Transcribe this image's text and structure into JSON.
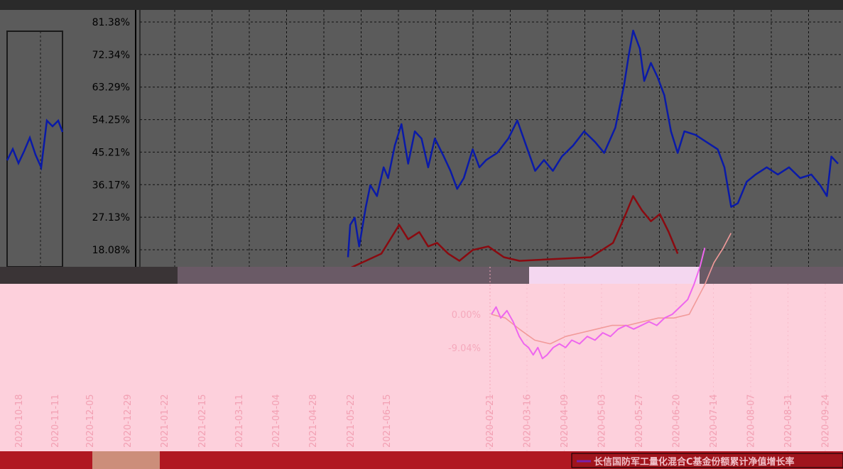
{
  "chart_data": [
    {
      "type": "line",
      "panel": "upper",
      "background": "#5b5b5b",
      "grid": true,
      "y_ticks": [
        "81.38%",
        "72.34%",
        "63.29%",
        "54.25%",
        "45.21%",
        "36.17%",
        "27.13%",
        "18.08%"
      ],
      "ylim": [
        14.0,
        81.38
      ],
      "series": [
        {
          "color": "#0a1aa8",
          "values": [
            {
              "x": "2021-05-19",
              "y": 16
            },
            {
              "x": "2021-05-20",
              "y": 25
            },
            {
              "x": "2021-05-22",
              "y": 27
            },
            {
              "x": "2021-05-24",
              "y": 19
            },
            {
              "x": "2021-05-27",
              "y": 30
            },
            {
              "x": "2021-05-29",
              "y": 36
            },
            {
              "x": "2021-06-01",
              "y": 33
            },
            {
              "x": "2021-06-04",
              "y": 41
            },
            {
              "x": "2021-06-06",
              "y": 38
            },
            {
              "x": "2021-06-09",
              "y": 47
            },
            {
              "x": "2021-06-12",
              "y": 53
            },
            {
              "x": "2021-06-15",
              "y": 42
            },
            {
              "x": "2021-06-18",
              "y": 51
            },
            {
              "x": "2021-06-21",
              "y": 49
            },
            {
              "x": "2021-06-24",
              "y": 41
            },
            {
              "x": "2021-06-27",
              "y": 49
            },
            {
              "x": "2021-07-01",
              "y": 44
            },
            {
              "x": "2021-07-04",
              "y": 40
            },
            {
              "x": "2021-07-07",
              "y": 35
            },
            {
              "x": "2021-07-10",
              "y": 38
            },
            {
              "x": "2021-07-14",
              "y": 46
            },
            {
              "x": "2021-07-17",
              "y": 41
            },
            {
              "x": "2021-07-20",
              "y": 43
            },
            {
              "x": "2021-07-25",
              "y": 45
            },
            {
              "x": "2021-07-30",
              "y": 49
            },
            {
              "x": "2021-08-03",
              "y": 54
            },
            {
              "x": "2021-08-07",
              "y": 47
            },
            {
              "x": "2021-08-11",
              "y": 40
            },
            {
              "x": "2021-08-15",
              "y": 43
            },
            {
              "x": "2021-08-19",
              "y": 40
            },
            {
              "x": "2021-08-23",
              "y": 44
            },
            {
              "x": "2021-08-28",
              "y": 47
            },
            {
              "x": "2021-09-02",
              "y": 51
            },
            {
              "x": "2021-09-07",
              "y": 48
            },
            {
              "x": "2021-09-11",
              "y": 45
            },
            {
              "x": "2021-09-16",
              "y": 52
            },
            {
              "x": "2021-09-20",
              "y": 64
            },
            {
              "x": "2021-09-22",
              "y": 72
            },
            {
              "x": "2021-09-24",
              "y": 79
            },
            {
              "x": "2021-09-27",
              "y": 74
            },
            {
              "x": "2021-09-29",
              "y": 65
            },
            {
              "x": "2021-10-02",
              "y": 70
            },
            {
              "x": "2021-10-05",
              "y": 66
            },
            {
              "x": "2021-10-08",
              "y": 61
            },
            {
              "x": "2021-10-11",
              "y": 51
            },
            {
              "x": "2021-10-14",
              "y": 45
            },
            {
              "x": "2021-10-17",
              "y": 51
            },
            {
              "x": "2021-10-22",
              "y": 50
            },
            {
              "x": "2021-10-27",
              "y": 48
            },
            {
              "x": "2021-11-01",
              "y": 46
            },
            {
              "x": "2021-11-04",
              "y": 41
            },
            {
              "x": "2021-11-07",
              "y": 30
            },
            {
              "x": "2021-11-10",
              "y": 31
            },
            {
              "x": "2021-11-14",
              "y": 37
            },
            {
              "x": "2021-11-18",
              "y": 39
            },
            {
              "x": "2021-11-23",
              "y": 41
            },
            {
              "x": "2021-11-28",
              "y": 39
            },
            {
              "x": "2021-12-03",
              "y": 41
            },
            {
              "x": "2021-12-08",
              "y": 38
            },
            {
              "x": "2021-12-13",
              "y": 39
            },
            {
              "x": "2021-12-17",
              "y": 36
            },
            {
              "x": "2021-12-20",
              "y": 33
            },
            {
              "x": "2021-12-22",
              "y": 44
            },
            {
              "x": "2021-12-25",
              "y": 42
            }
          ]
        },
        {
          "color": "#8a0a10",
          "values": [
            {
              "x": "2021-05-20",
              "y": 13
            },
            {
              "x": "2021-05-27",
              "y": 15
            },
            {
              "x": "2021-06-03",
              "y": 17
            },
            {
              "x": "2021-06-08",
              "y": 22
            },
            {
              "x": "2021-06-11",
              "y": 25
            },
            {
              "x": "2021-06-15",
              "y": 21
            },
            {
              "x": "2021-06-20",
              "y": 23
            },
            {
              "x": "2021-06-24",
              "y": 19
            },
            {
              "x": "2021-06-28",
              "y": 20
            },
            {
              "x": "2021-07-03",
              "y": 17
            },
            {
              "x": "2021-07-08",
              "y": 15
            },
            {
              "x": "2021-07-14",
              "y": 18
            },
            {
              "x": "2021-07-21",
              "y": 19
            },
            {
              "x": "2021-07-28",
              "y": 16
            },
            {
              "x": "2021-08-04",
              "y": 15
            },
            {
              "x": "2021-09-05",
              "y": 16
            },
            {
              "x": "2021-09-15",
              "y": 20
            },
            {
              "x": "2021-09-20",
              "y": 27
            },
            {
              "x": "2021-09-24",
              "y": 33
            },
            {
              "x": "2021-09-28",
              "y": 29
            },
            {
              "x": "2021-10-02",
              "y": 26
            },
            {
              "x": "2021-10-06",
              "y": 28
            },
            {
              "x": "2021-10-10",
              "y": 23
            },
            {
              "x": "2021-10-14",
              "y": 17
            }
          ]
        }
      ]
    },
    {
      "type": "line",
      "panel": "lower",
      "background": "#fdd0dc",
      "grid": true,
      "y_ticks": [
        "0.00%",
        "-9.04%"
      ],
      "ylim": [
        -12,
        24
      ],
      "x_ticks": [
        "2020-10-18",
        "2020-11-11",
        "2020-12-05",
        "2020-12-29",
        "2021-01-22",
        "2021-02-15",
        "2021-03-11",
        "2021-04-04",
        "2021-04-28",
        "2021-05-22",
        "2021-06-15",
        "2020-02-21",
        "2020-03-16",
        "2020-04-09",
        "2020-05-03",
        "2020-05-27",
        "2020-06-20",
        "2020-07-14",
        "2020-08-07",
        "2020-08-31",
        "2020-09-24"
      ],
      "xlim": [
        "2020-02-21",
        "2020-10-05"
      ],
      "series": [
        {
          "name": "长信国防军工量化混合C基金份额累计净值增长率",
          "color": "#ee66ee",
          "values": [
            {
              "x": "2020-02-21",
              "y": 0
            },
            {
              "x": "2020-02-24",
              "y": 2
            },
            {
              "x": "2020-02-27",
              "y": -1
            },
            {
              "x": "2020-03-02",
              "y": 1
            },
            {
              "x": "2020-03-06",
              "y": -2
            },
            {
              "x": "2020-03-10",
              "y": -6
            },
            {
              "x": "2020-03-13",
              "y": -8
            },
            {
              "x": "2020-03-16",
              "y": -9
            },
            {
              "x": "2020-03-19",
              "y": -11
            },
            {
              "x": "2020-03-22",
              "y": -9
            },
            {
              "x": "2020-03-25",
              "y": -12
            },
            {
              "x": "2020-03-28",
              "y": -11
            },
            {
              "x": "2020-04-01",
              "y": -9
            },
            {
              "x": "2020-04-05",
              "y": -8
            },
            {
              "x": "2020-04-09",
              "y": -9
            },
            {
              "x": "2020-04-13",
              "y": -7
            },
            {
              "x": "2020-04-18",
              "y": -8
            },
            {
              "x": "2020-04-23",
              "y": -6
            },
            {
              "x": "2020-04-28",
              "y": -7
            },
            {
              "x": "2020-05-03",
              "y": -5
            },
            {
              "x": "2020-05-08",
              "y": -6
            },
            {
              "x": "2020-05-13",
              "y": -4
            },
            {
              "x": "2020-05-18",
              "y": -3
            },
            {
              "x": "2020-05-23",
              "y": -4
            },
            {
              "x": "2020-05-28",
              "y": -3
            },
            {
              "x": "2020-06-02",
              "y": -2
            },
            {
              "x": "2020-06-07",
              "y": -3
            },
            {
              "x": "2020-06-12",
              "y": -1
            },
            {
              "x": "2020-06-17",
              "y": 0
            },
            {
              "x": "2020-06-22",
              "y": 2
            },
            {
              "x": "2020-06-27",
              "y": 4
            },
            {
              "x": "2020-07-01",
              "y": 8
            },
            {
              "x": "2020-07-05",
              "y": 13
            },
            {
              "x": "2020-07-08",
              "y": 18
            }
          ]
        },
        {
          "color": "#f29a9a",
          "values": [
            {
              "x": "2020-02-21",
              "y": 0
            },
            {
              "x": "2020-03-01",
              "y": -1
            },
            {
              "x": "2020-03-10",
              "y": -4
            },
            {
              "x": "2020-03-20",
              "y": -7
            },
            {
              "x": "2020-03-30",
              "y": -8
            },
            {
              "x": "2020-04-09",
              "y": -6
            },
            {
              "x": "2020-04-19",
              "y": -5
            },
            {
              "x": "2020-04-29",
              "y": -4
            },
            {
              "x": "2020-05-09",
              "y": -3
            },
            {
              "x": "2020-05-19",
              "y": -3
            },
            {
              "x": "2020-05-29",
              "y": -2
            },
            {
              "x": "2020-06-08",
              "y": -1
            },
            {
              "x": "2020-06-18",
              "y": -1
            },
            {
              "x": "2020-06-28",
              "y": 0
            },
            {
              "x": "2020-07-08",
              "y": 8
            },
            {
              "x": "2020-07-14",
              "y": 14
            },
            {
              "x": "2020-07-20",
              "y": 18
            },
            {
              "x": "2020-07-25",
              "y": 22
            }
          ]
        }
      ]
    }
  ],
  "legend": {
    "label": "长信国防军工量化混合C基金份额累计净值增长率",
    "swatch_color": "#7a1fa8"
  },
  "colors": {
    "upper_bg": "#5b5b5b",
    "lower_bg": "#fdd0dc",
    "bottom_band": "#b01822",
    "axis_text_dark": "#000000",
    "axis_text_light": "#f5b3c2"
  }
}
